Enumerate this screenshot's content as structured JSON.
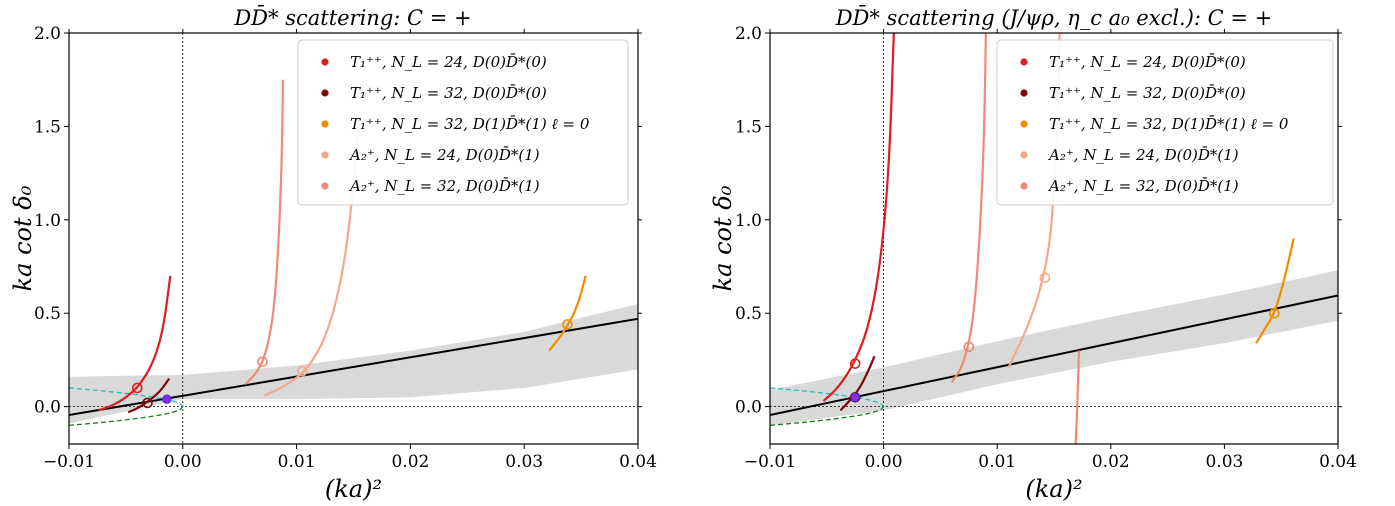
{
  "chart_data": [
    {
      "type": "line",
      "title": "DD̄* scattering: C = +",
      "xlabel": "(ka)²",
      "ylabel": "ka cot δ₀",
      "xlim": [
        -0.01,
        0.04
      ],
      "ylim": [
        -0.2,
        2.0
      ],
      "xticks": [
        -0.01,
        0.0,
        0.01,
        0.02,
        0.03,
        0.04
      ],
      "xtick_labels": [
        "−0.01",
        "0.00",
        "0.01",
        "0.02",
        "0.03",
        "0.04"
      ],
      "yticks": [
        0.0,
        0.5,
        1.0,
        1.5,
        2.0
      ],
      "ytick_labels": [
        "0.0",
        "0.5",
        "1.0",
        "1.5",
        "2.0"
      ],
      "legend_position": "top-right",
      "series": [
        {
          "name": "T₁⁺⁺, N_L = 24, D(0)D̄*(0)",
          "color": "#dc1e1e",
          "points": [
            [
              -0.0074,
              -0.02
            ],
            [
              -0.006,
              0.01
            ],
            [
              -0.0045,
              0.07
            ],
            [
              -0.0035,
              0.14
            ],
            [
              -0.0025,
              0.25
            ],
            [
              -0.0017,
              0.42
            ],
            [
              -0.0011,
              0.7
            ]
          ],
          "marker": [
            -0.004,
            0.1
          ]
        },
        {
          "name": "T₁⁺⁺, N_L = 32, D(0)D̄*(0)",
          "color": "#7a0a0a",
          "points": [
            [
              -0.0048,
              -0.03
            ],
            [
              -0.004,
              -0.01
            ],
            [
              -0.003,
              0.03
            ],
            [
              -0.002,
              0.08
            ],
            [
              -0.0012,
              0.15
            ]
          ],
          "marker": [
            -0.0031,
            0.02
          ]
        },
        {
          "name": "T₁⁺⁺, N_L = 32, D(1)D̄*(1) ℓ = 0",
          "color": "#f08c00",
          "points": [
            [
              0.0322,
              0.3
            ],
            [
              0.033,
              0.36
            ],
            [
              0.034,
              0.45
            ],
            [
              0.0348,
              0.56
            ],
            [
              0.0354,
              0.7
            ]
          ],
          "marker": [
            0.0338,
            0.44
          ]
        },
        {
          "name": "A₂⁺, N_L = 24, D(0)D̄*(1)",
          "color": "#f4a889",
          "points": [
            [
              0.0072,
              0.06
            ],
            [
              0.009,
              0.11
            ],
            [
              0.011,
              0.2
            ],
            [
              0.0128,
              0.4
            ],
            [
              0.0142,
              0.75
            ],
            [
              0.015,
              1.18
            ],
            [
              0.0154,
              1.5
            ]
          ],
          "marker": [
            0.0105,
            0.19
          ]
        },
        {
          "name": "A₂⁺, N_L = 32, D(0)D̄*(1)",
          "color": "#f08a78",
          "points": [
            [
              0.0055,
              0.12
            ],
            [
              0.0065,
              0.18
            ],
            [
              0.0073,
              0.28
            ],
            [
              0.008,
              0.5
            ],
            [
              0.0084,
              0.85
            ],
            [
              0.0087,
              1.3
            ],
            [
              0.0088,
              1.75
            ]
          ],
          "marker": [
            0.007,
            0.24
          ]
        }
      ],
      "fit_line": {
        "color": "#000000",
        "points": [
          [
            -0.01,
            -0.045
          ],
          [
            0.04,
            0.47
          ]
        ]
      },
      "error_band": {
        "color": "#d9d9d9",
        "upper": [
          [
            -0.01,
            0.16
          ],
          [
            0.0,
            0.17
          ],
          [
            0.01,
            0.22
          ],
          [
            0.02,
            0.3
          ],
          [
            0.03,
            0.4
          ],
          [
            0.04,
            0.55
          ]
        ],
        "lower": [
          [
            -0.01,
            -0.09
          ],
          [
            0.0,
            0.04
          ],
          [
            0.01,
            0.04
          ],
          [
            0.02,
            0.05
          ],
          [
            0.03,
            0.1
          ],
          [
            0.04,
            0.2
          ]
        ]
      },
      "pole_point": {
        "color": "#8a2be2",
        "x": -0.0014,
        "y": 0.04
      }
    },
    {
      "type": "line",
      "title": "DD̄* scattering (J/ψρ, η_c a₀ excl.): C = +",
      "xlabel": "(ka)²",
      "ylabel": "ka cot δ₀",
      "xlim": [
        -0.01,
        0.04
      ],
      "ylim": [
        -0.2,
        2.0
      ],
      "xticks": [
        -0.01,
        0.0,
        0.01,
        0.02,
        0.03,
        0.04
      ],
      "xtick_labels": [
        "−0.01",
        "0.00",
        "0.01",
        "0.02",
        "0.03",
        "0.04"
      ],
      "yticks": [
        0.0,
        0.5,
        1.0,
        1.5,
        2.0
      ],
      "ytick_labels": [
        "0.0",
        "0.5",
        "1.0",
        "1.5",
        "2.0"
      ],
      "legend_position": "top-right",
      "series": [
        {
          "name": "T₁⁺⁺, N_L = 24, D(0)D̄*(0)",
          "color": "#dc1e1e",
          "points": [
            [
              -0.0053,
              0.03
            ],
            [
              -0.004,
              0.1
            ],
            [
              -0.0025,
              0.24
            ],
            [
              -0.0012,
              0.45
            ],
            [
              -0.0002,
              0.8
            ],
            [
              0.0005,
              1.3
            ],
            [
              0.0009,
              2.0
            ]
          ],
          "marker": [
            -0.0025,
            0.23
          ]
        },
        {
          "name": "T₁⁺⁺, N_L = 32, D(0)D̄*(0)",
          "color": "#7a0a0a",
          "points": [
            [
              -0.0038,
              -0.02
            ],
            [
              -0.003,
              0.03
            ],
            [
              -0.0022,
              0.09
            ],
            [
              -0.0015,
              0.17
            ],
            [
              -0.0008,
              0.27
            ]
          ],
          "marker": [
            -0.0025,
            0.05
          ]
        },
        {
          "name": "T₁⁺⁺, N_L = 32, D(1)D̄*(1) ℓ = 0",
          "color": "#f08c00",
          "points": [
            [
              0.0328,
              0.34
            ],
            [
              0.0336,
              0.42
            ],
            [
              0.0344,
              0.5
            ],
            [
              0.0352,
              0.66
            ],
            [
              0.0361,
              0.9
            ]
          ],
          "marker": [
            0.0344,
            0.5
          ]
        },
        {
          "name": "A₂⁺, N_L = 24, D(0)D̄*(1)",
          "color": "#f4a889",
          "points": [
            [
              0.011,
              0.21
            ],
            [
              0.0125,
              0.4
            ],
            [
              0.0137,
              0.6
            ],
            [
              0.0146,
              0.85
            ],
            [
              0.015,
              1.15
            ],
            [
              0.0153,
              1.5
            ],
            [
              0.0155,
              2.0
            ]
          ],
          "marker": [
            0.0142,
            0.69
          ]
        },
        {
          "name": "A₂⁺, N_L = 32, D(0)D̄*(1)",
          "color": "#f08a78",
          "points": [
            [
              0.006,
              0.13
            ],
            [
              0.007,
              0.22
            ],
            [
              0.0078,
              0.42
            ],
            [
              0.0083,
              0.75
            ],
            [
              0.0087,
              1.2
            ],
            [
              0.0089,
              1.6
            ],
            [
              0.009,
              2.0
            ]
          ],
          "marker": [
            0.0075,
            0.32
          ]
        }
      ],
      "extra_curve": {
        "color": "#f08a78",
        "points": [
          [
            0.0172,
            0.3
          ],
          [
            0.0171,
            0.1
          ],
          [
            0.017,
            -0.08
          ],
          [
            0.0169,
            -0.2
          ]
        ]
      },
      "fit_line": {
        "color": "#000000",
        "points": [
          [
            -0.01,
            -0.045
          ],
          [
            0.04,
            0.595
          ]
        ]
      },
      "error_band": {
        "color": "#d9d9d9",
        "upper": [
          [
            -0.01,
            0.09
          ],
          [
            0.0,
            0.21
          ],
          [
            0.01,
            0.35
          ],
          [
            0.02,
            0.48
          ],
          [
            0.03,
            0.6
          ],
          [
            0.04,
            0.73
          ]
        ],
        "lower": [
          [
            -0.01,
            -0.1
          ],
          [
            0.0,
            -0.02
          ],
          [
            0.01,
            0.12
          ],
          [
            0.02,
            0.24
          ],
          [
            0.03,
            0.34
          ],
          [
            0.04,
            0.46
          ]
        ]
      },
      "pole_point": {
        "color": "#8a2be2",
        "x": -0.0025,
        "y": 0.05
      }
    }
  ]
}
